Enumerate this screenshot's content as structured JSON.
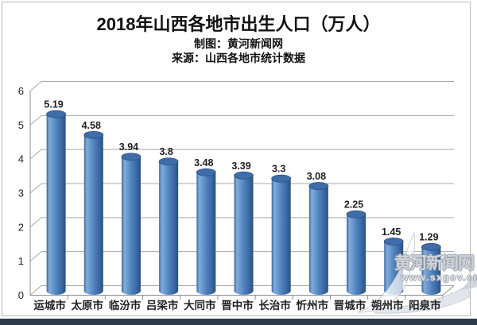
{
  "page": {
    "title": "2018年山西各地市出生人口（万人）",
    "credit": "制图：黄河新闻网",
    "source": "来源：山西各地市统计数据"
  },
  "watermark": {
    "name": "黄河新闻网",
    "url": "www.sxgov.cn"
  },
  "colors": {
    "bar_main": "#4f81bd",
    "bar_highlight": "#82abda",
    "bar_shadow": "#2a5080",
    "bar_top": "#3e6da9",
    "gridline": "#a8a8a8",
    "axis": "#8c8c8c",
    "text": "#1f1f1f",
    "frame_border": "#b5b8bc",
    "bottom_strip": "#2d3a48"
  },
  "chart_data": {
    "type": "bar",
    "style": "3d-cylinder",
    "title": "2018年山西各地市出生人口（万人）",
    "xlabel": "",
    "ylabel": "",
    "categories": [
      "运城市",
      "太原市",
      "临汾市",
      "吕梁市",
      "大同市",
      "晋中市",
      "长治市",
      "忻州市",
      "晋城市",
      "朔州市",
      "阳泉市"
    ],
    "values": [
      5.19,
      4.58,
      3.94,
      3.8,
      3.48,
      3.39,
      3.3,
      3.08,
      2.25,
      1.45,
      1.29
    ],
    "value_labels": [
      "5.19",
      "4.58",
      "3.94",
      "3.8",
      "3.48",
      "3.39",
      "3.3",
      "3.08",
      "2.25",
      "1.45",
      "1.29"
    ],
    "ylim": [
      0,
      6
    ],
    "yticks": [
      0,
      1,
      2,
      3,
      4,
      5,
      6
    ],
    "grid": true,
    "legend": false,
    "data_labels": true
  }
}
